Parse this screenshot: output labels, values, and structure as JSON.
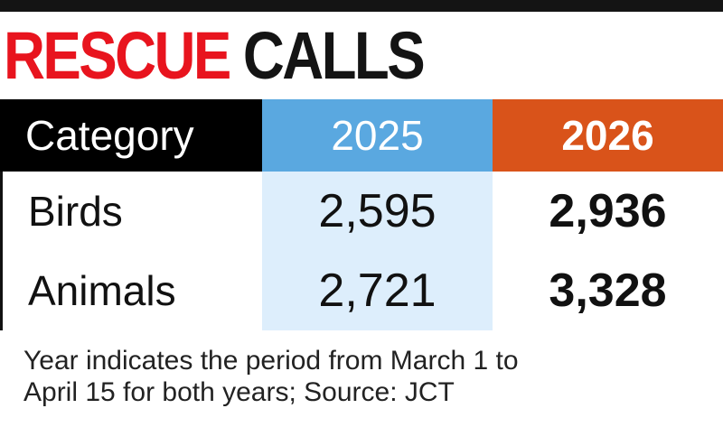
{
  "title": {
    "part1": "RESCUE",
    "part2": "CALLS"
  },
  "colors": {
    "title_red": "#e8141e",
    "header_2025": "#5aa8e0",
    "header_2026": "#d9531a",
    "column_2025_bg": "#ddeefc"
  },
  "chart_data": {
    "type": "table",
    "title": "RESCUE CALLS",
    "columns": [
      "Category",
      "2025",
      "2026"
    ],
    "rows": [
      {
        "category": "Birds",
        "v2025": "2,595",
        "v2026": "2,936"
      },
      {
        "category": "Animals",
        "v2025": "2,721",
        "v2026": "3,328"
      }
    ],
    "note_line1": "Year indicates the period from March 1 to",
    "note_line2": "April 15 for both years; Source: JCT"
  }
}
